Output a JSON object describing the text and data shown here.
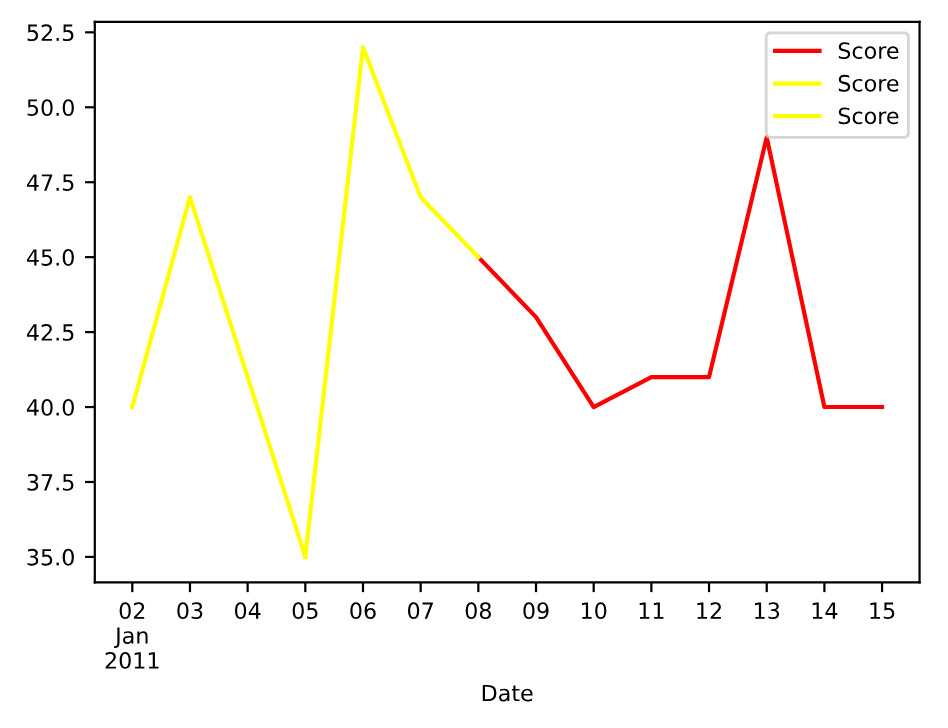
{
  "chart_data": {
    "type": "line",
    "xlabel": "Date",
    "x": [
      "2011-01-02",
      "2011-01-03",
      "2011-01-04",
      "2011-01-05",
      "2011-01-06",
      "2011-01-07",
      "2011-01-08",
      "2011-01-09",
      "2011-01-10",
      "2011-01-11",
      "2011-01-12",
      "2011-01-13",
      "2011-01-14",
      "2011-01-15"
    ],
    "series": [
      {
        "name": "Score",
        "color": "#ff0000",
        "values": [
          null,
          null,
          null,
          null,
          null,
          null,
          45,
          43,
          40,
          41,
          41,
          49,
          40,
          40
        ]
      },
      {
        "name": "Score",
        "color": "#ffff00",
        "values": [
          40,
          47,
          41,
          35,
          null,
          null,
          null,
          null,
          null,
          null,
          null,
          null,
          null,
          null
        ]
      },
      {
        "name": "Score",
        "color": "#ffff00",
        "values": [
          null,
          null,
          null,
          35,
          52,
          47,
          45,
          null,
          null,
          null,
          null,
          null,
          null,
          null
        ]
      }
    ],
    "xlim": [
      "2011-01-01T08:24",
      "2011-01-15T15:36"
    ],
    "xticks": [
      {
        "value": "2011-01-02",
        "label": "02\nJan\n2011"
      },
      {
        "value": "2011-01-03",
        "label": "03"
      },
      {
        "value": "2011-01-04",
        "label": "04"
      },
      {
        "value": "2011-01-05",
        "label": "05"
      },
      {
        "value": "2011-01-06",
        "label": "06"
      },
      {
        "value": "2011-01-07",
        "label": "07"
      },
      {
        "value": "2011-01-08",
        "label": "08"
      },
      {
        "value": "2011-01-09",
        "label": "09"
      },
      {
        "value": "2011-01-10",
        "label": "10"
      },
      {
        "value": "2011-01-11",
        "label": "11"
      },
      {
        "value": "2011-01-12",
        "label": "12"
      },
      {
        "value": "2011-01-13",
        "label": "13"
      },
      {
        "value": "2011-01-14",
        "label": "14"
      },
      {
        "value": "2011-01-15",
        "label": "15"
      }
    ],
    "ylim": [
      34.15,
      52.85
    ],
    "yticks": [
      {
        "value": 35,
        "label": "35.0"
      },
      {
        "value": 37.5,
        "label": "37.5"
      },
      {
        "value": 40,
        "label": "40.0"
      },
      {
        "value": 42.5,
        "label": "42.5"
      },
      {
        "value": 45,
        "label": "45.0"
      },
      {
        "value": 47.5,
        "label": "47.5"
      },
      {
        "value": 50,
        "label": "50.0"
      },
      {
        "value": 52.5,
        "label": "52.5"
      }
    ],
    "grid": false,
    "legend": "top right"
  }
}
